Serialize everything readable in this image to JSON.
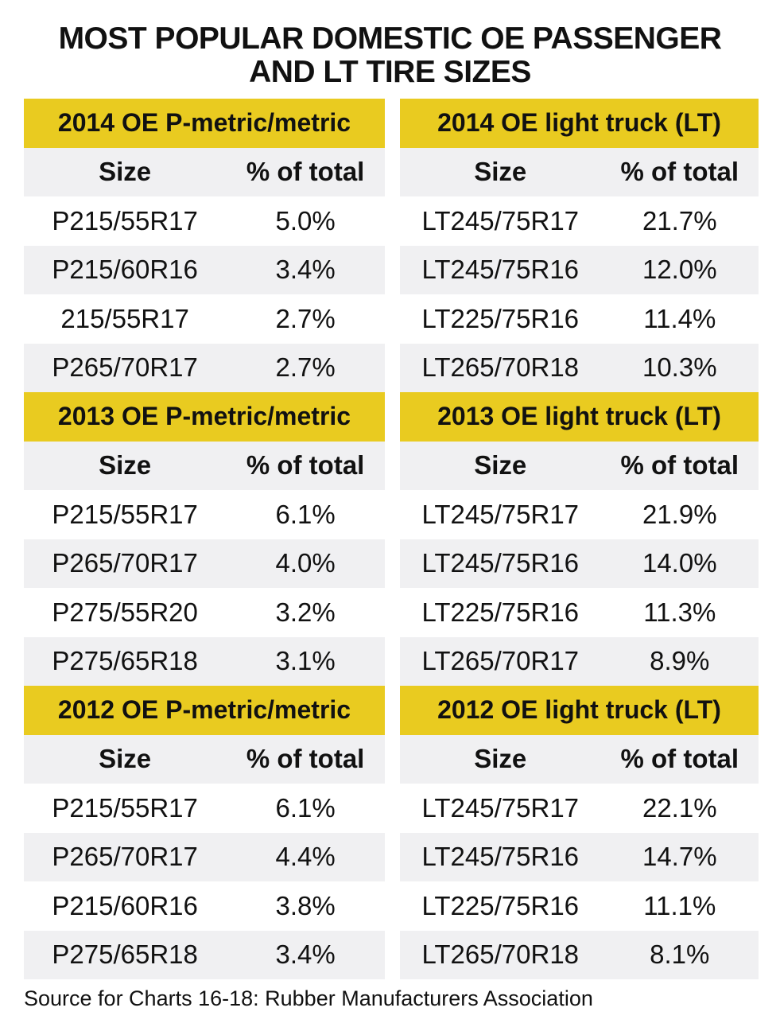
{
  "title": "MOST POPULAR DOMESTIC OE PASSENGER AND LT TIRE SIZES",
  "title_line1": "MOST POPULAR DOMESTIC OE PASSENGER",
  "title_line2": "AND LT TIRE SIZES",
  "colors": {
    "header": "#e9cb20",
    "stripe": "#f0f0f2"
  },
  "chart_data": {
    "type": "table",
    "tables": [
      {
        "title": "2014 OE P-metric/metric",
        "columns": [
          "Size",
          "% of total"
        ],
        "rows": [
          [
            "P215/55R17",
            "5.0%"
          ],
          [
            "P215/60R16",
            "3.4%"
          ],
          [
            "215/55R17",
            "2.7%"
          ],
          [
            "P265/70R17",
            "2.7%"
          ]
        ]
      },
      {
        "title": "2014 OE light truck (LT)",
        "columns": [
          "Size",
          "% of total"
        ],
        "rows": [
          [
            "LT245/75R17",
            "21.7%"
          ],
          [
            "LT245/75R16",
            "12.0%"
          ],
          [
            "LT225/75R16",
            "11.4%"
          ],
          [
            "LT265/70R18",
            "10.3%"
          ]
        ]
      },
      {
        "title": "2013 OE P-metric/metric",
        "columns": [
          "Size",
          "% of total"
        ],
        "rows": [
          [
            "P215/55R17",
            "6.1%"
          ],
          [
            "P265/70R17",
            "4.0%"
          ],
          [
            "P275/55R20",
            "3.2%"
          ],
          [
            "P275/65R18",
            "3.1%"
          ]
        ]
      },
      {
        "title": "2013 OE light truck (LT)",
        "columns": [
          "Size",
          "% of total"
        ],
        "rows": [
          [
            "LT245/75R17",
            "21.9%"
          ],
          [
            "LT245/75R16",
            "14.0%"
          ],
          [
            "LT225/75R16",
            "11.3%"
          ],
          [
            "LT265/70R17",
            "8.9%"
          ]
        ]
      },
      {
        "title": "2012 OE P-metric/metric",
        "columns": [
          "Size",
          "% of total"
        ],
        "rows": [
          [
            "P215/55R17",
            "6.1%"
          ],
          [
            "P265/70R17",
            "4.4%"
          ],
          [
            "P215/60R16",
            "3.8%"
          ],
          [
            "P275/65R18",
            "3.4%"
          ]
        ]
      },
      {
        "title": "2012 OE light truck (LT)",
        "columns": [
          "Size",
          "% of total"
        ],
        "rows": [
          [
            "LT245/75R17",
            "22.1%"
          ],
          [
            "LT245/75R16",
            "14.7%"
          ],
          [
            "LT225/75R16",
            "11.1%"
          ],
          [
            "LT265/70R18",
            "8.1%"
          ]
        ]
      }
    ]
  },
  "source": "Source for Charts 16-18: Rubber Manufacturers Association"
}
